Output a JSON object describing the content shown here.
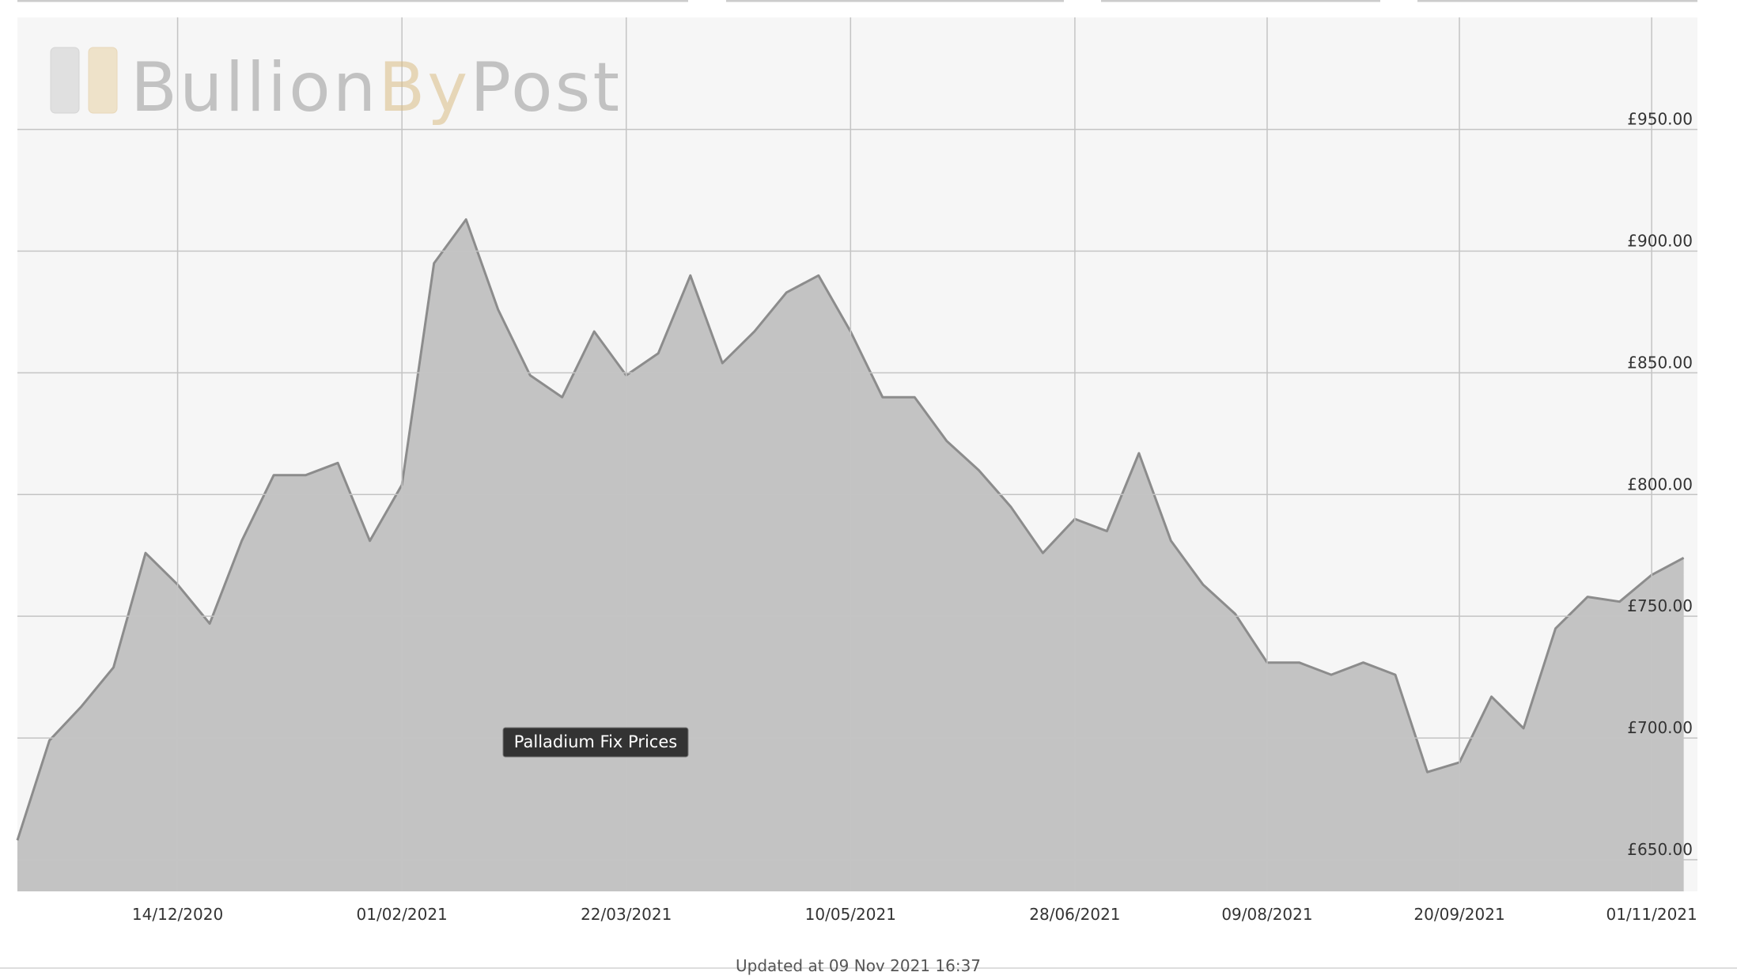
{
  "chart_data": {
    "type": "area",
    "watermark": [
      "Bullion",
      "By",
      "Post"
    ],
    "tooltip": "Palladium Fix Prices",
    "footer": "Updated at 09 Nov 2021 16:37",
    "x": [
      "09/11/2020",
      "16/11/2020",
      "23/11/2020",
      "30/11/2020",
      "07/12/2020",
      "14/12/2020",
      "21/12/2020",
      "28/12/2020",
      "04/01/2021",
      "11/01/2021",
      "18/01/2021",
      "25/01/2021",
      "01/02/2021",
      "08/02/2021",
      "15/02/2021",
      "22/02/2021",
      "01/03/2021",
      "08/03/2021",
      "15/03/2021",
      "22/03/2021",
      "29/03/2021",
      "05/04/2021",
      "12/04/2021",
      "19/04/2021",
      "26/04/2021",
      "03/05/2021",
      "10/05/2021",
      "17/05/2021",
      "24/05/2021",
      "31/05/2021",
      "07/06/2021",
      "14/06/2021",
      "21/06/2021",
      "28/06/2021",
      "05/07/2021",
      "12/07/2021",
      "19/07/2021",
      "26/07/2021",
      "02/08/2021",
      "09/08/2021",
      "16/08/2021",
      "23/08/2021",
      "30/08/2021",
      "06/09/2021",
      "13/09/2021",
      "20/09/2021",
      "27/09/2021",
      "04/10/2021",
      "11/10/2021",
      "18/10/2021",
      "25/10/2021",
      "01/11/2021",
      "08/11/2021"
    ],
    "series": [
      {
        "name": "Palladium Fix Prices",
        "color": "#8c8c8c",
        "fill": "#c0c0c0",
        "values": [
          658,
          699,
          713,
          729,
          776,
          763,
          747,
          781,
          808,
          808,
          813,
          781,
          804,
          895,
          913,
          876,
          849,
          840,
          867,
          849,
          858,
          890,
          854,
          867,
          883,
          890,
          867,
          840,
          840,
          822,
          810,
          795,
          776,
          790,
          785,
          817,
          781,
          763,
          751,
          731,
          731,
          726,
          731,
          726,
          686,
          690,
          717,
          704,
          745,
          758,
          756,
          767,
          774
        ]
      }
    ],
    "xlim": [
      "09/11/2020",
      "11/11/2021"
    ],
    "xticks": [
      "14/12/2020",
      "01/02/2021",
      "22/03/2021",
      "10/05/2021",
      "28/06/2021",
      "09/08/2021",
      "20/09/2021",
      "01/11/2021"
    ],
    "ylim": [
      637,
      996
    ],
    "yticks": [
      {
        "value": 650,
        "label": "£650.00"
      },
      {
        "value": 700,
        "label": "£700.00"
      },
      {
        "value": 750,
        "label": "£750.00"
      },
      {
        "value": 800,
        "label": "£800.00"
      },
      {
        "value": 850,
        "label": "£850.00"
      },
      {
        "value": 900,
        "label": "£900.00"
      },
      {
        "value": 950,
        "label": "£950.00"
      }
    ],
    "grid": true
  }
}
